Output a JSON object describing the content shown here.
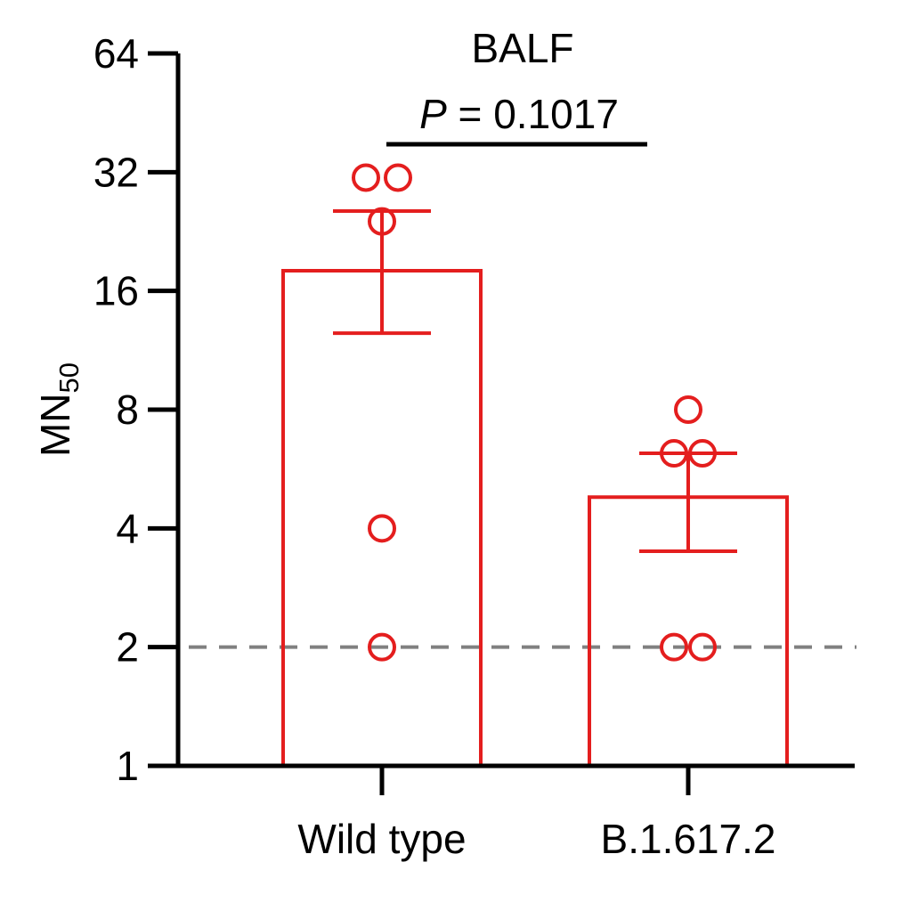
{
  "chart_data": {
    "type": "bar",
    "title": "BALF",
    "ylabel": "MN",
    "ylabel_subscript": "50",
    "y_scale": "log2",
    "ylim": [
      1,
      64
    ],
    "yticks": [
      1,
      2,
      4,
      8,
      16,
      32,
      64
    ],
    "ytick_labels": [
      "1",
      "2",
      "4",
      "8",
      "16",
      "32",
      "64"
    ],
    "categories": [
      "Wild type",
      "B.1.617.2"
    ],
    "values": [
      18,
      4.8
    ],
    "error_bars": [
      {
        "lower": 12.5,
        "upper": 25.5
      },
      {
        "lower": 3.5,
        "upper": 6.2
      }
    ],
    "points": [
      [
        31,
        31,
        24,
        4,
        2
      ],
      [
        8,
        6.2,
        6.2,
        2,
        2
      ]
    ],
    "reference_line": {
      "y": 2,
      "style": "dashed",
      "color": "#808080"
    },
    "annotation": {
      "text_italic": "P",
      "text_rest": " = 0.1017",
      "between": [
        "Wild type",
        "B.1.617.2"
      ]
    },
    "colors": {
      "series": "#e41e1e",
      "axis": "#000000",
      "reference": "#808080"
    }
  }
}
